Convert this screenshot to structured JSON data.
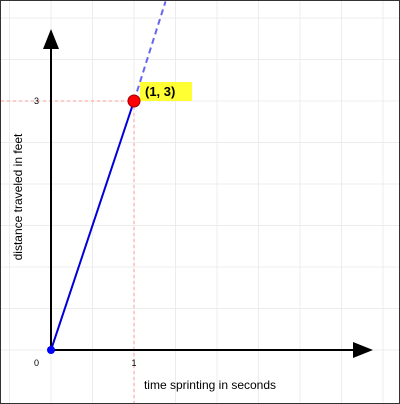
{
  "chart_data": {
    "type": "line",
    "xlabel": "time sprinting in seconds",
    "ylabel": "distance traveled in feet",
    "xlim": [
      -0.55,
      4.3
    ],
    "ylim": [
      -0.25,
      4.2
    ],
    "x_ticks": [
      0,
      1
    ],
    "y_ticks": [
      0,
      3
    ],
    "grid": true,
    "series": [
      {
        "x": [
          0,
          1
        ],
        "y": [
          0,
          3
        ],
        "style": "solid",
        "color": "#0000dd"
      },
      {
        "x": [
          1,
          1.38
        ],
        "y": [
          3,
          4.2
        ],
        "style": "dashed",
        "color": "#6666ee"
      }
    ],
    "points": [
      {
        "x": 0,
        "y": 0,
        "color": "#0000ff"
      },
      {
        "x": 1,
        "y": 3,
        "color": "#ff0000",
        "label": "(1, 3)",
        "label_bg": "#ffff33"
      }
    ],
    "guides": {
      "x": 1,
      "y": 3,
      "color": "#ff9999",
      "style": "dashed"
    },
    "origin_label": "0"
  }
}
